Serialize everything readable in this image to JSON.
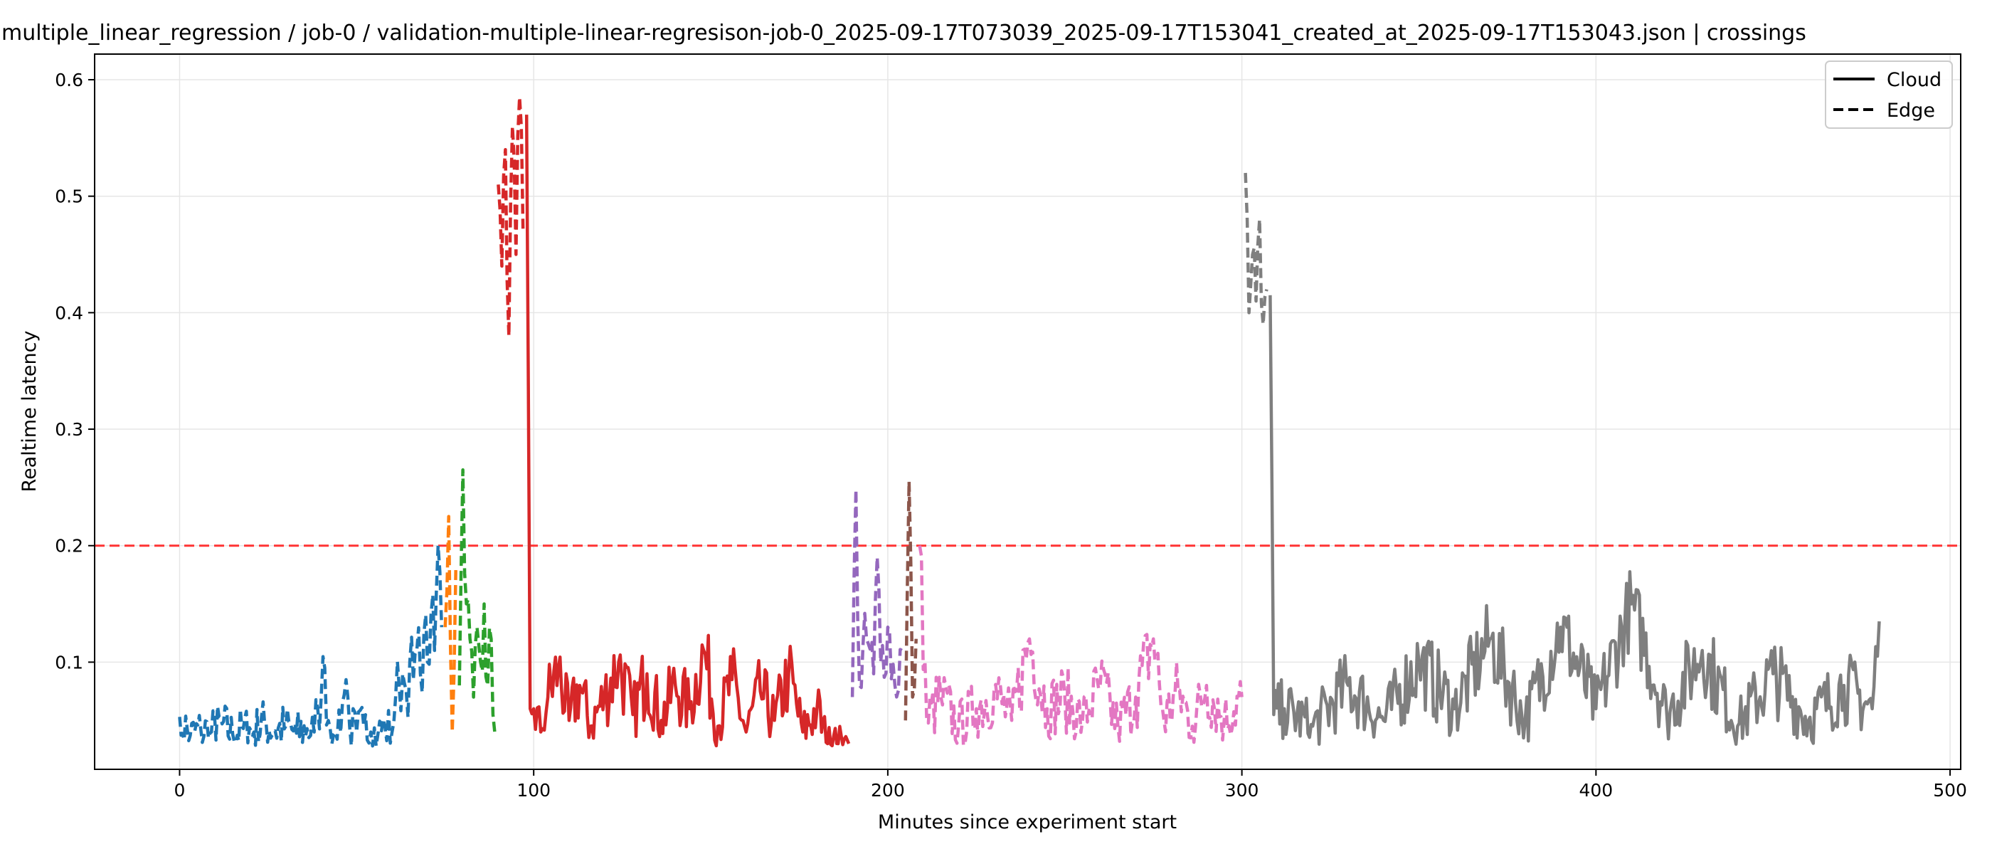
{
  "chart_data": {
    "type": "line",
    "title": "multiple_linear_regression / job-0 / validation-multiple-linear-regresison-job-0_2025-09-17T073039_2025-09-17T153041_created_at_2025-09-17T153043.json  |  crossings",
    "xlabel": "Minutes since experiment start",
    "ylabel": "Realtime latency",
    "xlim": [
      -24,
      503
    ],
    "ylim": [
      0.008,
      0.622
    ],
    "xticks": [
      0,
      100,
      200,
      300,
      400,
      500
    ],
    "yticks": [
      0.1,
      0.2,
      0.3,
      0.4,
      0.5,
      0.6
    ],
    "grid": true,
    "threshold": {
      "y": 0.2,
      "color": "#ff3333",
      "style": "dashed"
    },
    "legend": {
      "placement": "top-right",
      "entries": [
        {
          "label": "Cloud",
          "style": "solid"
        },
        {
          "label": "Edge",
          "style": "dashed"
        }
      ]
    },
    "series": [
      {
        "color": "#1f77b4",
        "style": "dashed",
        "x_range": [
          0,
          74
        ],
        "points": [
          [
            0,
            0.053
          ],
          [
            3,
            0.037
          ],
          [
            6,
            0.042
          ],
          [
            9,
            0.04
          ],
          [
            12,
            0.047
          ],
          [
            15,
            0.038
          ],
          [
            18,
            0.043
          ],
          [
            21,
            0.04
          ],
          [
            24,
            0.048
          ],
          [
            27,
            0.041
          ],
          [
            30,
            0.045
          ],
          [
            33,
            0.039
          ],
          [
            36,
            0.043
          ],
          [
            38,
            0.04
          ],
          [
            39,
            0.06
          ],
          [
            40,
            0.07
          ],
          [
            41,
            0.095
          ],
          [
            42,
            0.05
          ],
          [
            44,
            0.04
          ],
          [
            46,
            0.065
          ],
          [
            47,
            0.085
          ],
          [
            48,
            0.045
          ],
          [
            50,
            0.04
          ],
          [
            52,
            0.045
          ],
          [
            54,
            0.04
          ],
          [
            56,
            0.038
          ],
          [
            58,
            0.045
          ],
          [
            60,
            0.04
          ],
          [
            61,
            0.07
          ],
          [
            62,
            0.08
          ],
          [
            63,
            0.09
          ],
          [
            64,
            0.075
          ],
          [
            65,
            0.1
          ],
          [
            66,
            0.085
          ],
          [
            67,
            0.11
          ],
          [
            68,
            0.09
          ],
          [
            69,
            0.125
          ],
          [
            70,
            0.1
          ],
          [
            71,
            0.14
          ],
          [
            72,
            0.11
          ],
          [
            73,
            0.2
          ],
          [
            74,
            0.13
          ]
        ]
      },
      {
        "color": "#ff7f0e",
        "style": "dashed",
        "x_range": [
          75,
          78
        ],
        "points": [
          [
            75,
            0.13
          ],
          [
            76,
            0.225
          ],
          [
            77,
            0.04
          ],
          [
            78,
            0.18
          ]
        ]
      },
      {
        "color": "#2ca02c",
        "style": "dashed",
        "x_range": [
          79,
          89
        ],
        "points": [
          [
            79,
            0.08
          ],
          [
            80,
            0.265
          ],
          [
            81,
            0.15
          ],
          [
            82,
            0.12
          ],
          [
            83,
            0.07
          ],
          [
            84,
            0.13
          ],
          [
            85,
            0.1
          ],
          [
            86,
            0.15
          ],
          [
            87,
            0.08
          ],
          [
            88,
            0.12
          ],
          [
            89,
            0.04
          ]
        ]
      },
      {
        "color": "#d62728",
        "style": "dashed",
        "x_range": [
          90,
          97
        ],
        "points": [
          [
            90,
            0.51
          ],
          [
            91,
            0.44
          ],
          [
            92,
            0.54
          ],
          [
            93,
            0.38
          ],
          [
            94,
            0.56
          ],
          [
            95,
            0.45
          ],
          [
            96,
            0.585
          ],
          [
            97,
            0.47
          ]
        ]
      },
      {
        "color": "#d62728",
        "style": "solid",
        "x_range": [
          98,
          189
        ],
        "points": [
          [
            98,
            0.57
          ],
          [
            99,
            0.06
          ],
          [
            100,
            0.06
          ],
          [
            102,
            0.04
          ],
          [
            104,
            0.07
          ],
          [
            107,
            0.095
          ],
          [
            110,
            0.05
          ],
          [
            113,
            0.08
          ],
          [
            116,
            0.045
          ],
          [
            120,
            0.07
          ],
          [
            124,
            0.1
          ],
          [
            128,
            0.055
          ],
          [
            132,
            0.09
          ],
          [
            136,
            0.05
          ],
          [
            140,
            0.08
          ],
          [
            144,
            0.06
          ],
          [
            148,
            0.11
          ],
          [
            152,
            0.045
          ],
          [
            156,
            0.085
          ],
          [
            160,
            0.04
          ],
          [
            164,
            0.075
          ],
          [
            168,
            0.05
          ],
          [
            172,
            0.09
          ],
          [
            176,
            0.04
          ],
          [
            180,
            0.06
          ],
          [
            183,
            0.03
          ],
          [
            186,
            0.03
          ],
          [
            189,
            0.03
          ]
        ]
      },
      {
        "color": "#9467bd",
        "style": "dashed",
        "x_range": [
          190,
          204
        ],
        "points": [
          [
            190,
            0.07
          ],
          [
            191,
            0.248
          ],
          [
            192,
            0.08
          ],
          [
            194,
            0.12
          ],
          [
            196,
            0.09
          ],
          [
            197,
            0.19
          ],
          [
            198,
            0.1
          ],
          [
            200,
            0.13
          ],
          [
            202,
            0.08
          ],
          [
            204,
            0.11
          ]
        ]
      },
      {
        "color": "#8c564b",
        "style": "dashed",
        "x_range": [
          205,
          208
        ],
        "points": [
          [
            205,
            0.05
          ],
          [
            206,
            0.255
          ],
          [
            207,
            0.07
          ],
          [
            208,
            0.12
          ]
        ]
      },
      {
        "color": "#e377c2",
        "style": "dashed",
        "x_range": [
          209,
          300
        ],
        "points": [
          [
            209,
            0.2
          ],
          [
            211,
            0.05
          ],
          [
            215,
            0.07
          ],
          [
            220,
            0.045
          ],
          [
            225,
            0.06
          ],
          [
            230,
            0.075
          ],
          [
            235,
            0.05
          ],
          [
            240,
            0.12
          ],
          [
            245,
            0.06
          ],
          [
            250,
            0.07
          ],
          [
            255,
            0.05
          ],
          [
            260,
            0.08
          ],
          [
            265,
            0.045
          ],
          [
            270,
            0.07
          ],
          [
            275,
            0.12
          ],
          [
            278,
            0.05
          ],
          [
            282,
            0.075
          ],
          [
            286,
            0.045
          ],
          [
            290,
            0.08
          ],
          [
            295,
            0.05
          ],
          [
            300,
            0.07
          ]
        ]
      },
      {
        "color": "#7f7f7f",
        "style": "dashed",
        "x_range": [
          301,
          307
        ],
        "points": [
          [
            301,
            0.52
          ],
          [
            302,
            0.4
          ],
          [
            303,
            0.45
          ],
          [
            304,
            0.41
          ],
          [
            305,
            0.48
          ],
          [
            306,
            0.39
          ],
          [
            307,
            0.42
          ]
        ]
      },
      {
        "color": "#7f7f7f",
        "style": "solid",
        "x_range": [
          308,
          480
        ],
        "points": [
          [
            308,
            0.415
          ],
          [
            309,
            0.055
          ],
          [
            312,
            0.06
          ],
          [
            320,
            0.045
          ],
          [
            330,
            0.08
          ],
          [
            340,
            0.05
          ],
          [
            350,
            0.1
          ],
          [
            360,
            0.06
          ],
          [
            370,
            0.12
          ],
          [
            380,
            0.05
          ],
          [
            390,
            0.13
          ],
          [
            400,
            0.06
          ],
          [
            410,
            0.15
          ],
          [
            420,
            0.055
          ],
          [
            430,
            0.11
          ],
          [
            440,
            0.045
          ],
          [
            450,
            0.09
          ],
          [
            460,
            0.05
          ],
          [
            470,
            0.08
          ],
          [
            478,
            0.06
          ],
          [
            480,
            0.135
          ]
        ]
      }
    ]
  }
}
